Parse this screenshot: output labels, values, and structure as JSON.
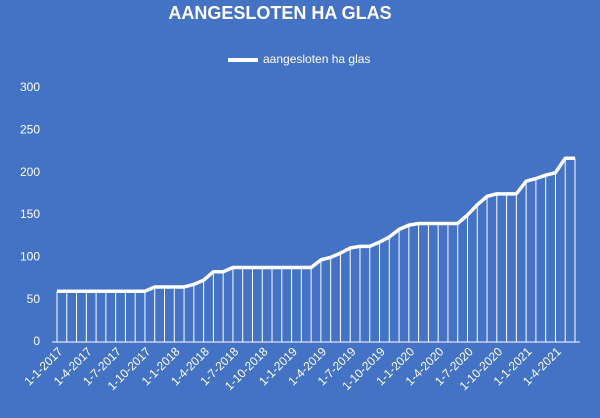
{
  "chart_data": {
    "type": "line",
    "title": "AANGESLOTEN HA GLAS",
    "categories": [
      "1-1-2017",
      null,
      null,
      "1-4-2017",
      null,
      null,
      "1-7-2017",
      null,
      null,
      "1-10-2017",
      null,
      null,
      "1-1-2018",
      null,
      null,
      "1-4-2018",
      null,
      null,
      "1-7-2018",
      null,
      null,
      "1-10-2018",
      null,
      null,
      "1-1-2019",
      null,
      null,
      "1-4-2019",
      null,
      null,
      "1-7-2019",
      null,
      null,
      "1-10-2019",
      null,
      null,
      "1-1-2020",
      null,
      null,
      "1-4-2020",
      null,
      null,
      "1-7-2020",
      null,
      null,
      "1-10-2020",
      null,
      null,
      "1-1-2021",
      null,
      null,
      "1-4-2021",
      null,
      null
    ],
    "series": [
      {
        "name": "aangesloten ha glas",
        "color": "#ffffff",
        "values": [
          60,
          60,
          60,
          60,
          60,
          60,
          60,
          60,
          60,
          60,
          65,
          65,
          65,
          65,
          68,
          73,
          83,
          83,
          88,
          88,
          88,
          88,
          88,
          88,
          88,
          88,
          88,
          97,
          100,
          105,
          111,
          113,
          113,
          118,
          124,
          133,
          138,
          140,
          140,
          140,
          140,
          140,
          150,
          162,
          172,
          175,
          175,
          175,
          190,
          193,
          197,
          200,
          217,
          217
        ]
      }
    ],
    "ylim": [
      0,
      300
    ],
    "yticks": [
      0,
      50,
      100,
      150,
      200,
      250,
      300
    ],
    "drop_lines": true,
    "legend": "top"
  }
}
